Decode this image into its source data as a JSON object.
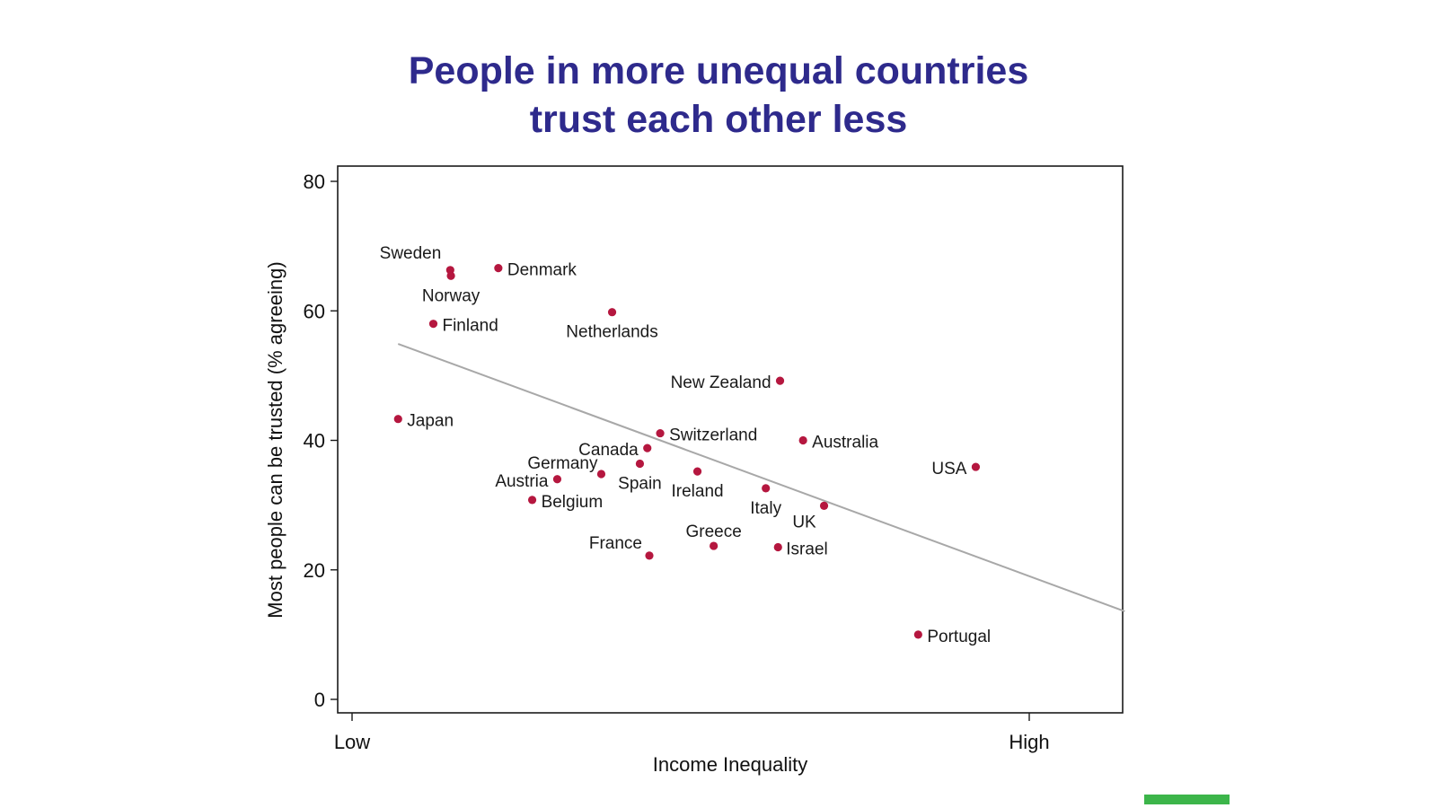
{
  "title_lines": [
    "People in more unequal countries",
    "trust each other less"
  ],
  "chart_data": {
    "type": "scatter",
    "title": "People in more unequal countries trust each other less",
    "xlabel": "Income Inequality",
    "ylabel": "Most people can be trusted (% agreeing)",
    "ylim": [
      0,
      80
    ],
    "xlim": [
      0,
      100
    ],
    "x_tick_labels": [
      {
        "x": 0,
        "label": "Low"
      },
      {
        "x": 100,
        "label": "High"
      }
    ],
    "y_ticks": [
      0,
      20,
      40,
      60,
      80
    ],
    "grid": false,
    "marker_color": "#b5173f",
    "line_color": "#a8a8a8",
    "trend_line": {
      "x1": 6.8,
      "y1": 54.9,
      "x2": 114.1,
      "y2": 13.6
    },
    "points": [
      {
        "name": "Sweden",
        "x": 14.5,
        "y": 66.3
      },
      {
        "name": "Norway",
        "x": 14.6,
        "y": 65.4
      },
      {
        "name": "Denmark",
        "x": 21.6,
        "y": 66.6
      },
      {
        "name": "Finland",
        "x": 12.0,
        "y": 58.0
      },
      {
        "name": "Netherlands",
        "x": 38.4,
        "y": 59.8
      },
      {
        "name": "New Zealand",
        "x": 63.2,
        "y": 49.2
      },
      {
        "name": "Japan",
        "x": 6.8,
        "y": 43.3
      },
      {
        "name": "Switzerland",
        "x": 45.5,
        "y": 41.1
      },
      {
        "name": "Australia",
        "x": 66.6,
        "y": 40.0
      },
      {
        "name": "Canada",
        "x": 43.6,
        "y": 38.8
      },
      {
        "name": "Germany",
        "x": 36.8,
        "y": 34.8
      },
      {
        "name": "Spain",
        "x": 42.5,
        "y": 36.4
      },
      {
        "name": "Ireland",
        "x": 51.0,
        "y": 35.2
      },
      {
        "name": "Austria",
        "x": 30.3,
        "y": 34.0
      },
      {
        "name": "Italy",
        "x": 61.1,
        "y": 32.6
      },
      {
        "name": "UK",
        "x": 69.7,
        "y": 29.9
      },
      {
        "name": "USA",
        "x": 92.1,
        "y": 35.9
      },
      {
        "name": "Belgium",
        "x": 26.6,
        "y": 30.8
      },
      {
        "name": "Greece",
        "x": 53.4,
        "y": 23.7
      },
      {
        "name": "Israel",
        "x": 62.9,
        "y": 23.5
      },
      {
        "name": "France",
        "x": 43.9,
        "y": 22.2
      },
      {
        "name": "Portugal",
        "x": 83.6,
        "y": 10.0
      }
    ]
  }
}
